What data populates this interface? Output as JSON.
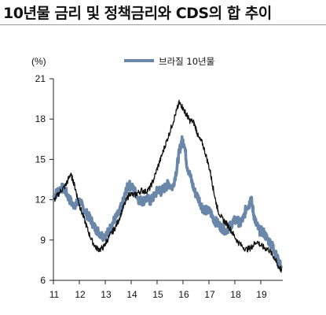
{
  "title": "10년물 금리 및 정책금리와 CDS의 합 추이",
  "chart_data": {
    "type": "line",
    "unit_label": "(%)",
    "xlabel": "",
    "ylabel": "",
    "xlim": [
      11,
      19.85
    ],
    "ylim": [
      6,
      21
    ],
    "yticks": [
      6,
      9,
      12,
      15,
      18,
      21
    ],
    "xticks": [
      11,
      12,
      13,
      14,
      15,
      16,
      17,
      18,
      19
    ],
    "xtick_labels": [
      "11",
      "12",
      "13",
      "14",
      "15",
      "16",
      "17",
      "18",
      "19"
    ],
    "legend_position": "top-center",
    "series": [
      {
        "name": "브라질 10년물",
        "color": "#6a87aa",
        "points": [
          [
            11.0,
            12.2
          ],
          [
            11.15,
            12.6
          ],
          [
            11.3,
            12.9
          ],
          [
            11.45,
            12.7
          ],
          [
            11.6,
            12.1
          ],
          [
            11.75,
            11.6
          ],
          [
            11.9,
            11.7
          ],
          [
            12.0,
            11.9
          ],
          [
            12.15,
            11.4
          ],
          [
            12.3,
            10.9
          ],
          [
            12.45,
            10.5
          ],
          [
            12.6,
            9.9
          ],
          [
            12.75,
            9.6
          ],
          [
            12.9,
            9.3
          ],
          [
            13.05,
            9.4
          ],
          [
            13.2,
            9.9
          ],
          [
            13.35,
            10.5
          ],
          [
            13.5,
            10.9
          ],
          [
            13.65,
            11.6
          ],
          [
            13.8,
            12.6
          ],
          [
            13.9,
            13.1
          ],
          [
            14.0,
            13.0
          ],
          [
            14.15,
            12.6
          ],
          [
            14.3,
            12.0
          ],
          [
            14.45,
            11.9
          ],
          [
            14.6,
            12.1
          ],
          [
            14.75,
            11.9
          ],
          [
            14.9,
            12.3
          ],
          [
            15.05,
            12.8
          ],
          [
            15.15,
            12.6
          ],
          [
            15.3,
            12.9
          ],
          [
            15.45,
            13.2
          ],
          [
            15.6,
            12.9
          ],
          [
            15.75,
            14.2
          ],
          [
            15.85,
            15.5
          ],
          [
            15.95,
            16.4
          ],
          [
            16.05,
            16.2
          ],
          [
            16.15,
            14.6
          ],
          [
            16.3,
            13.6
          ],
          [
            16.45,
            12.6
          ],
          [
            16.6,
            12.1
          ],
          [
            16.75,
            11.4
          ],
          [
            16.9,
            11.2
          ],
          [
            17.05,
            11.1
          ],
          [
            17.2,
            10.5
          ],
          [
            17.35,
            10.2
          ],
          [
            17.5,
            9.9
          ],
          [
            17.65,
            9.7
          ],
          [
            17.8,
            10.0
          ],
          [
            17.95,
            10.4
          ],
          [
            18.1,
            10.5
          ],
          [
            18.2,
            10.2
          ],
          [
            18.35,
            10.7
          ],
          [
            18.45,
            11.5
          ],
          [
            18.55,
            11.6
          ],
          [
            18.62,
            12.2
          ],
          [
            18.72,
            11.0
          ],
          [
            18.82,
            10.2
          ],
          [
            18.95,
            9.7
          ],
          [
            19.1,
            9.6
          ],
          [
            19.25,
            9.1
          ],
          [
            19.4,
            8.7
          ],
          [
            19.5,
            8.4
          ],
          [
            19.6,
            7.8
          ],
          [
            19.7,
            7.3
          ],
          [
            19.8,
            7.0
          ]
        ]
      },
      {
        "name": "",
        "color": "#111111",
        "points": [
          [
            11.0,
            11.9
          ],
          [
            11.15,
            12.3
          ],
          [
            11.3,
            12.7
          ],
          [
            11.45,
            13.0
          ],
          [
            11.55,
            13.4
          ],
          [
            11.65,
            13.9
          ],
          [
            11.75,
            13.5
          ],
          [
            11.85,
            12.8
          ],
          [
            11.95,
            12.0
          ],
          [
            12.05,
            11.3
          ],
          [
            12.2,
            10.5
          ],
          [
            12.35,
            9.6
          ],
          [
            12.5,
            8.9
          ],
          [
            12.65,
            8.4
          ],
          [
            12.8,
            8.3
          ],
          [
            12.95,
            8.5
          ],
          [
            13.05,
            8.9
          ],
          [
            13.2,
            9.4
          ],
          [
            13.35,
            9.8
          ],
          [
            13.5,
            10.4
          ],
          [
            13.65,
            11.2
          ],
          [
            13.8,
            11.9
          ],
          [
            13.95,
            12.5
          ],
          [
            14.1,
            12.3
          ],
          [
            14.25,
            12.5
          ],
          [
            14.4,
            12.7
          ],
          [
            14.55,
            12.6
          ],
          [
            14.7,
            12.8
          ],
          [
            14.85,
            13.4
          ],
          [
            15.0,
            14.3
          ],
          [
            15.15,
            15.1
          ],
          [
            15.3,
            16.0
          ],
          [
            15.45,
            16.8
          ],
          [
            15.6,
            17.7
          ],
          [
            15.75,
            18.6
          ],
          [
            15.85,
            19.2
          ],
          [
            15.95,
            19.0
          ],
          [
            16.05,
            18.6
          ],
          [
            16.15,
            18.3
          ],
          [
            16.25,
            17.9
          ],
          [
            16.4,
            17.8
          ],
          [
            16.5,
            17.3
          ],
          [
            16.6,
            16.6
          ],
          [
            16.75,
            16.2
          ],
          [
            16.9,
            15.2
          ],
          [
            17.05,
            14.1
          ],
          [
            17.15,
            13.0
          ],
          [
            17.25,
            12.0
          ],
          [
            17.35,
            11.2
          ],
          [
            17.5,
            10.6
          ],
          [
            17.65,
            10.3
          ],
          [
            17.8,
            9.9
          ],
          [
            17.95,
            9.4
          ],
          [
            18.1,
            8.9
          ],
          [
            18.25,
            8.6
          ],
          [
            18.45,
            8.3
          ],
          [
            18.6,
            8.4
          ],
          [
            18.7,
            8.6
          ],
          [
            18.85,
            8.9
          ],
          [
            19.0,
            8.6
          ],
          [
            19.15,
            8.4
          ],
          [
            19.3,
            8.3
          ],
          [
            19.45,
            7.9
          ],
          [
            19.55,
            7.6
          ],
          [
            19.65,
            7.1
          ],
          [
            19.75,
            6.9
          ],
          [
            19.8,
            6.7
          ]
        ]
      }
    ]
  }
}
